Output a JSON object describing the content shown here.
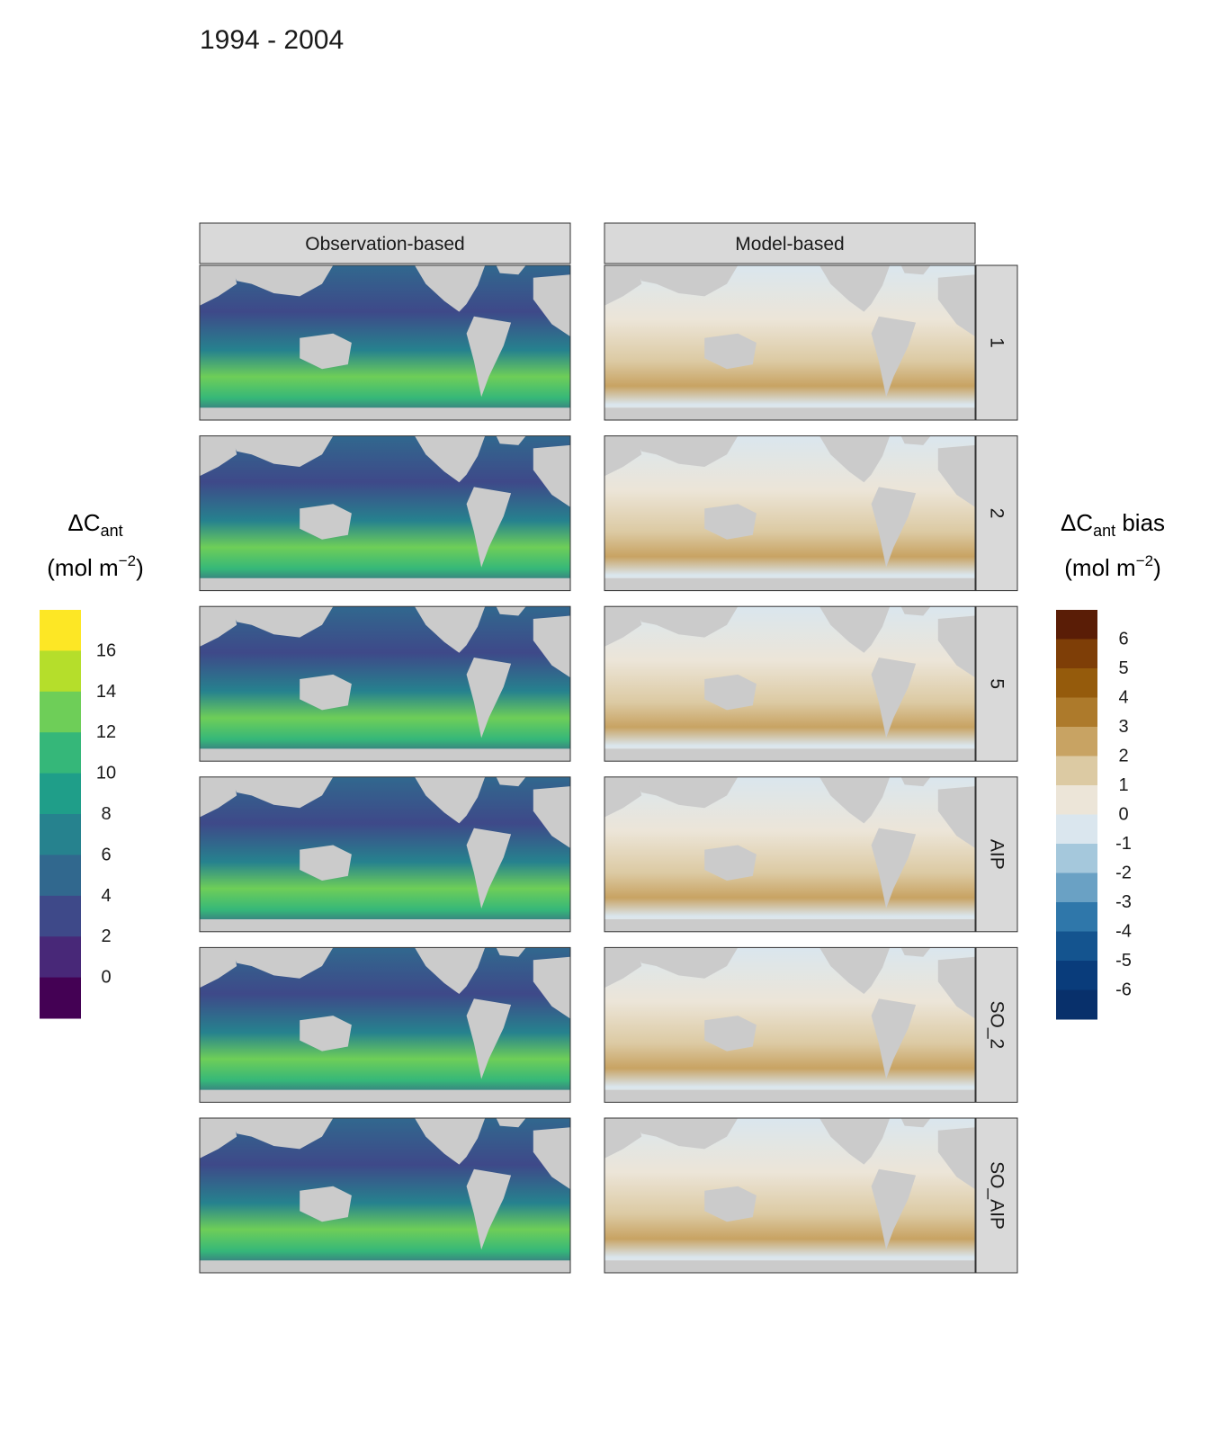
{
  "title": "1994 - 2004",
  "chart_data": {
    "type": "heatmap",
    "title": "1994 - 2004",
    "columns": [
      "Observation-based",
      "Model-based"
    ],
    "rows": [
      "1",
      "2",
      "5",
      "AIP",
      "SO_2",
      "SO_AIP"
    ],
    "legend_left": {
      "title_main": "ΔC",
      "title_sub": "ant",
      "title_suffix": "",
      "unit_pre": "(mol m",
      "unit_sup": "−2",
      "unit_post": ")",
      "tick_labels": [
        "16",
        "14",
        "12",
        "10",
        "8",
        "6",
        "4",
        "2",
        "0"
      ],
      "tick_values": [
        16,
        14,
        12,
        10,
        8,
        6,
        4,
        2,
        0
      ],
      "bins_top_to_bottom": [
        "#fde725",
        "#b5de2b",
        "#6ece58",
        "#35b779",
        "#1f9e89",
        "#26828e",
        "#31688e",
        "#3e4989",
        "#482878",
        "#440154"
      ]
    },
    "legend_right": {
      "title_main": "ΔC",
      "title_sub": "ant",
      "title_suffix": " bias",
      "unit_pre": "(mol m",
      "unit_sup": "−2",
      "unit_post": ")",
      "tick_labels": [
        "6",
        "5",
        "4",
        "3",
        "2",
        "1",
        "0",
        "-1",
        "-2",
        "-3",
        "-4",
        "-5",
        "-6"
      ],
      "tick_values": [
        6,
        5,
        4,
        3,
        2,
        1,
        0,
        -1,
        -2,
        -3,
        -4,
        -5,
        -6
      ],
      "bins_top_to_bottom": [
        "#5a1d06",
        "#7e3e07",
        "#955b0c",
        "#ad7a2b",
        "#c8a363",
        "#dccaa3",
        "#ece5d8",
        "#dae6ee",
        "#a5c8dc",
        "#6aa1c4",
        "#2f77aa",
        "#14548f",
        "#093c7b",
        "#08306b"
      ]
    },
    "colors": {
      "land": "#cbcbcb",
      "strip": "#d9d9d9",
      "panel_border": "#333333"
    }
  }
}
